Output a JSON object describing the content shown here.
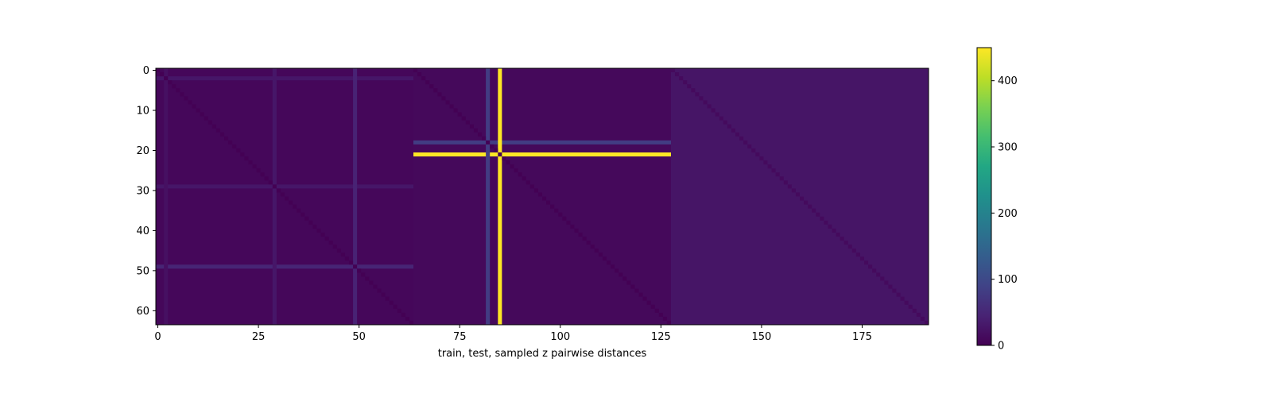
{
  "chart_data": {
    "type": "heatmap",
    "title": "",
    "xlabel": "train, test, sampled z pairwise distances",
    "ylabel": "",
    "rows": 64,
    "cols": 192,
    "xlim": [
      -0.5,
      191.5
    ],
    "ylim": [
      63.5,
      -0.5
    ],
    "x_ticks": [
      0,
      25,
      50,
      75,
      100,
      125,
      150,
      175
    ],
    "y_ticks": [
      0,
      10,
      20,
      30,
      40,
      50,
      60
    ],
    "colormap": "viridis",
    "color_range": [
      0,
      450
    ],
    "colorbar_ticks": [
      0,
      100,
      200,
      300,
      400
    ],
    "grid": false,
    "blocks": [
      {
        "name": "train",
        "cols": [
          0,
          63
        ],
        "typical_value": 8
      },
      {
        "name": "test",
        "cols": [
          64,
          127
        ],
        "typical_value": 10
      },
      {
        "name": "sampled z",
        "cols": [
          128,
          191
        ],
        "typical_value": 26
      }
    ],
    "diagonal_values": [
      {
        "cols": [
          0,
          127
        ],
        "value": 0
      },
      {
        "cols": [
          128,
          191
        ],
        "value": 12
      }
    ],
    "highlighted_columns": [
      {
        "col": 2,
        "value": 20
      },
      {
        "col": 29,
        "value": 28
      },
      {
        "col": 49,
        "value": 45
      },
      {
        "col": 82,
        "value": 80
      },
      {
        "col": 85,
        "value": 450
      }
    ],
    "highlighted_rows": [
      {
        "row": 2,
        "cols": [
          0,
          63
        ],
        "value": 28
      },
      {
        "row": 29,
        "cols": [
          0,
          63
        ],
        "value": 28
      },
      {
        "row": 49,
        "cols": [
          0,
          63
        ],
        "value": 48
      },
      {
        "row": 18,
        "cols": [
          64,
          127
        ],
        "value": 80
      },
      {
        "row": 21,
        "cols": [
          64,
          127
        ],
        "value": 450
      }
    ]
  }
}
